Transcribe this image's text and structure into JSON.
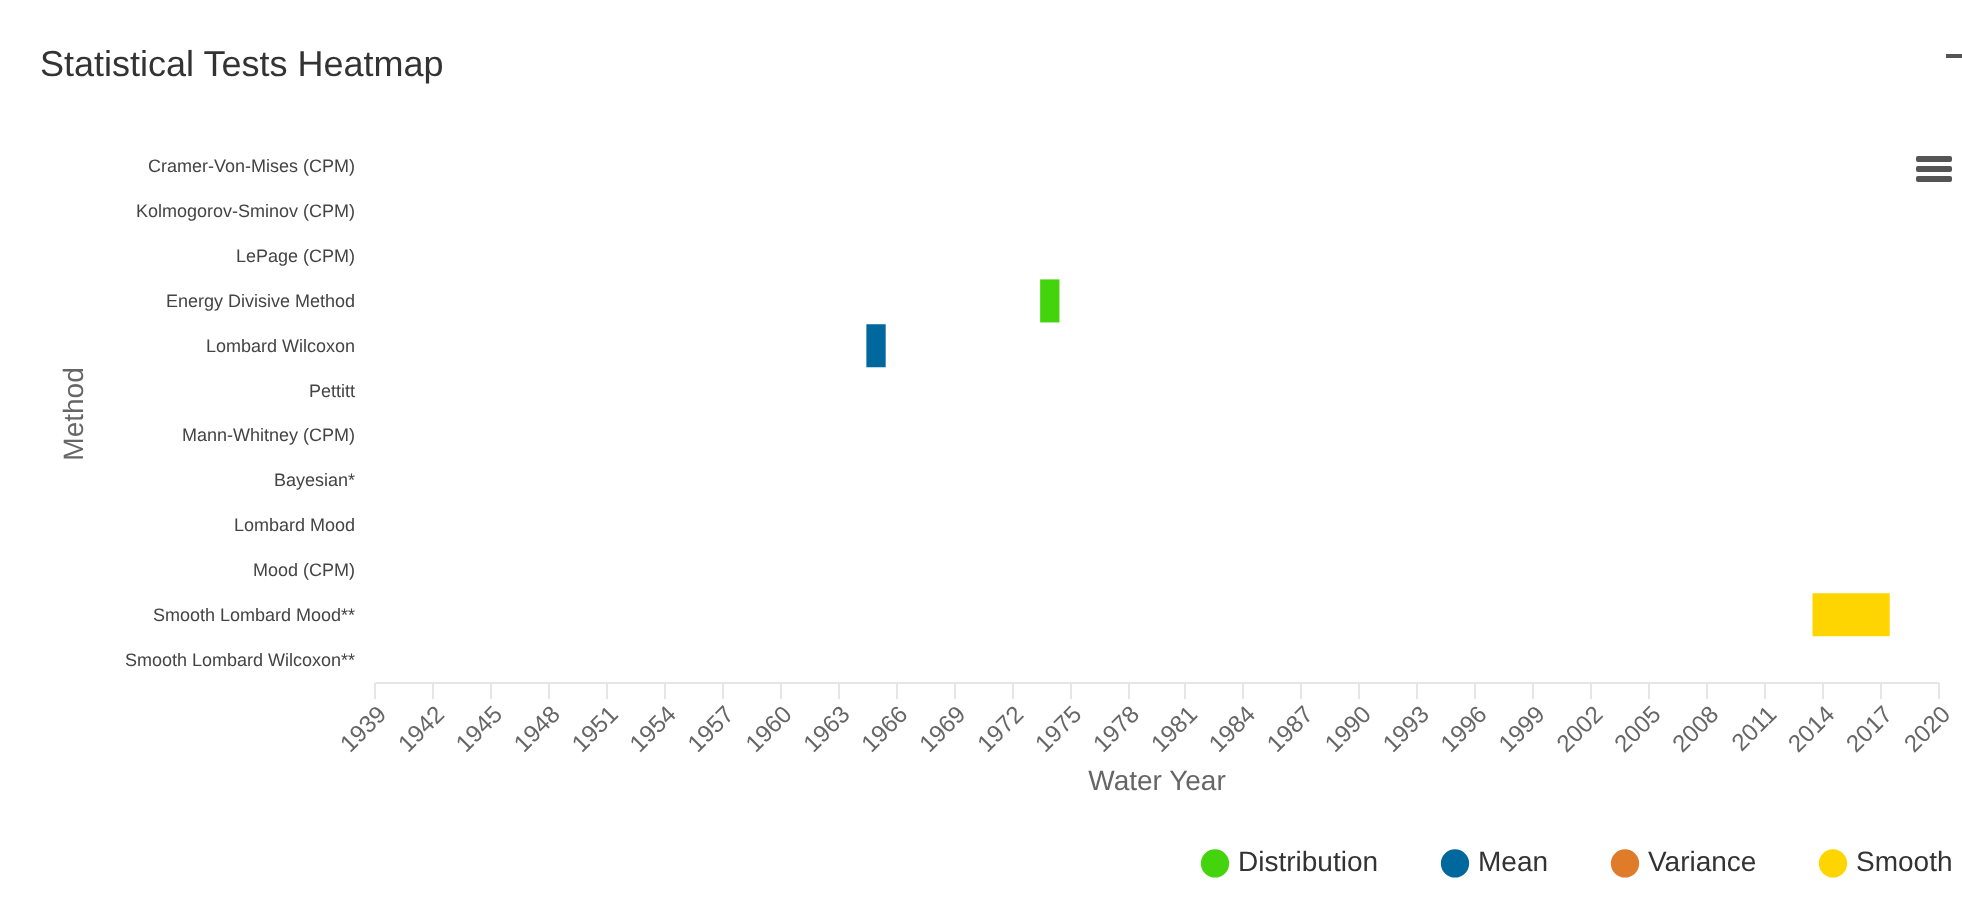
{
  "chart_data": {
    "type": "bar",
    "orientation": "horizontal",
    "title": "Statistical Tests Heatmap",
    "xlabel": "Water Year",
    "ylabel": "Method",
    "legend": "bottom right",
    "grid": false,
    "categories": [
      "Cramer-Von-Mises (CPM)",
      "Kolmogorov-Sminov (CPM)",
      "LePage (CPM)",
      "Energy Divisive Method",
      "Lombard Wilcoxon",
      "Pettitt",
      "Mann-Whitney (CPM)",
      "Bayesian*",
      "Lombard Mood",
      "Mood (CPM)",
      "Smooth Lombard Mood**",
      "Smooth Lombard Wilcoxon**"
    ],
    "xlim": [
      1939,
      2020
    ],
    "xticks": [
      1939,
      1942,
      1945,
      1948,
      1951,
      1954,
      1957,
      1960,
      1963,
      1966,
      1969,
      1972,
      1975,
      1978,
      1981,
      1984,
      1987,
      1990,
      1993,
      1996,
      1999,
      2002,
      2005,
      2008,
      2011,
      2014,
      2017,
      2020
    ],
    "series": [
      {
        "name": "Distribution",
        "color": "#44d40e",
        "base": [
          null,
          null,
          null,
          1973.5,
          null,
          null,
          null,
          null,
          null,
          null,
          null,
          null
        ],
        "values": [
          null,
          null,
          null,
          1,
          null,
          null,
          null,
          null,
          null,
          null,
          null,
          null
        ]
      },
      {
        "name": "Mean",
        "color": "#00689c",
        "base": [
          null,
          null,
          null,
          null,
          1964.5,
          null,
          null,
          null,
          null,
          null,
          null,
          null
        ],
        "values": [
          null,
          null,
          null,
          null,
          1,
          null,
          null,
          null,
          null,
          null,
          null,
          null
        ]
      },
      {
        "name": "Variance",
        "color": "#e07b29",
        "base": [
          null,
          null,
          null,
          null,
          null,
          null,
          null,
          null,
          null,
          null,
          null,
          null
        ],
        "values": [
          null,
          null,
          null,
          null,
          null,
          null,
          null,
          null,
          null,
          null,
          null,
          null
        ]
      },
      {
        "name": "Smooth",
        "color": "#ffd500",
        "base": [
          null,
          null,
          null,
          null,
          null,
          null,
          null,
          null,
          null,
          null,
          2013.5,
          null
        ],
        "values": [
          null,
          null,
          null,
          null,
          null,
          null,
          null,
          null,
          null,
          null,
          4,
          null
        ]
      }
    ]
  }
}
